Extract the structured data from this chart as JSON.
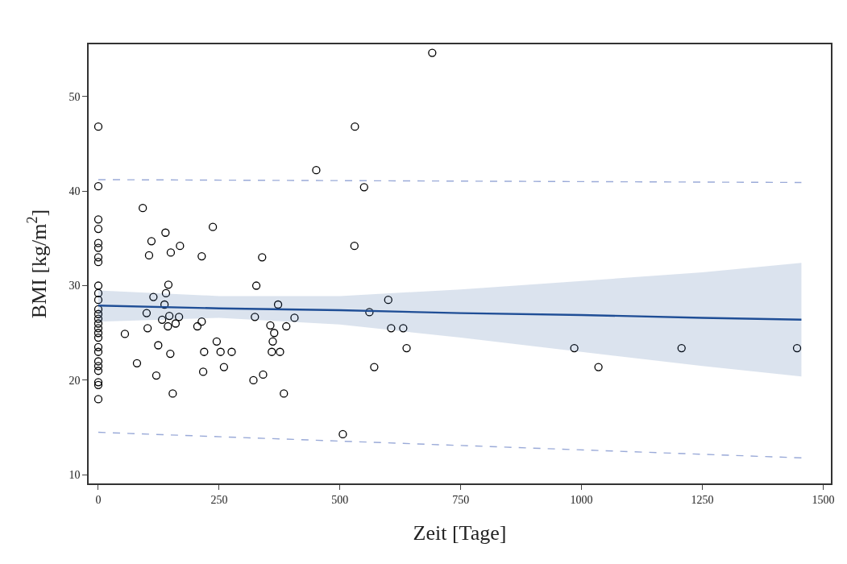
{
  "chart_data": {
    "type": "scatter",
    "xlabel": "Zeit [Tage]",
    "ylabel": "BMI [kg/m$^{2}$]",
    "xlim": [
      -20,
      1516
    ],
    "ylim": [
      9.1,
      55.5
    ],
    "xticks": [
      0,
      250,
      500,
      750,
      1000,
      1250,
      1500
    ],
    "yticks": [
      10,
      20,
      30,
      40,
      50
    ],
    "series": [
      {
        "color": "#000000",
        "marker": "circle",
        "x": [
          0,
          0,
          0,
          0,
          0,
          0,
          0,
          0,
          0,
          0,
          0,
          0,
          0,
          0,
          0,
          0,
          0,
          0,
          0,
          0,
          0,
          0,
          0,
          0,
          0,
          0,
          55,
          80,
          92,
          100,
          102,
          105,
          110,
          114,
          120,
          124,
          132,
          137,
          139,
          140,
          145,
          144,
          147,
          149,
          150,
          154,
          160,
          167,
          169,
          205,
          214,
          214,
          219,
          217,
          237,
          245,
          253,
          260,
          276,
          321,
          324,
          327,
          339,
          341,
          356,
          361,
          364,
          359,
          376,
          372,
          384,
          389,
          406,
          451,
          506,
          531,
          530,
          550,
          600,
          561,
          606,
          631,
          571,
          638,
          691,
          985,
          1035,
          1207,
          1446
        ],
        "values": [
          46.8,
          40.5,
          37,
          36,
          34.5,
          34,
          33,
          32.5,
          30,
          29.2,
          28.5,
          27.5,
          27,
          26.5,
          26,
          25.5,
          25,
          24.5,
          23.5,
          23,
          22,
          21.5,
          21,
          19.8,
          19.5,
          18,
          24.9,
          21.8,
          38.2,
          27.1,
          25.5,
          33.2,
          34.7,
          28.8,
          20.5,
          23.7,
          26.4,
          28,
          35.6,
          29.2,
          30.1,
          25.7,
          26.8,
          22.8,
          33.5,
          18.6,
          26,
          26.7,
          34.2,
          25.7,
          26.2,
          33.1,
          23,
          20.9,
          36.2,
          24.1,
          23,
          21.4,
          23,
          20,
          26.7,
          30,
          33,
          20.6,
          25.8,
          24.1,
          25,
          23,
          23,
          28,
          18.6,
          25.7,
          26.6,
          42.2,
          14.3,
          46.8,
          34.2,
          40.4,
          28.5,
          27.2,
          25.5,
          25.5,
          21.4,
          23.4,
          54.6,
          23.4,
          21.4,
          23.4,
          23.4
        ]
      },
      {
        "type": "line",
        "color": "#1f4e96",
        "line_style": "solid",
        "marker": "none",
        "x": [
          0,
          250,
          500,
          750,
          1000,
          1250,
          1455
        ],
        "values": [
          27.9,
          27.6,
          27.4,
          27.1,
          26.9,
          26.6,
          26.4
        ],
        "lower": [
          26.2,
          26.6,
          25.9,
          24.5,
          23.0,
          21.5,
          20.4
        ],
        "upper": [
          29.5,
          28.9,
          28.9,
          29.6,
          30.5,
          31.4,
          32.4
        ]
      },
      {
        "type": "line",
        "color": "#9aaad8",
        "line_style": "dashed",
        "x": [
          0,
          1455
        ],
        "values": [
          41.2,
          40.9
        ],
        "marker": "none"
      },
      {
        "type": "line",
        "color": "#9aaad8",
        "line_style": "dashed",
        "x": [
          0,
          1455
        ],
        "values": [
          14.5,
          11.8
        ],
        "marker": "none"
      }
    ]
  }
}
